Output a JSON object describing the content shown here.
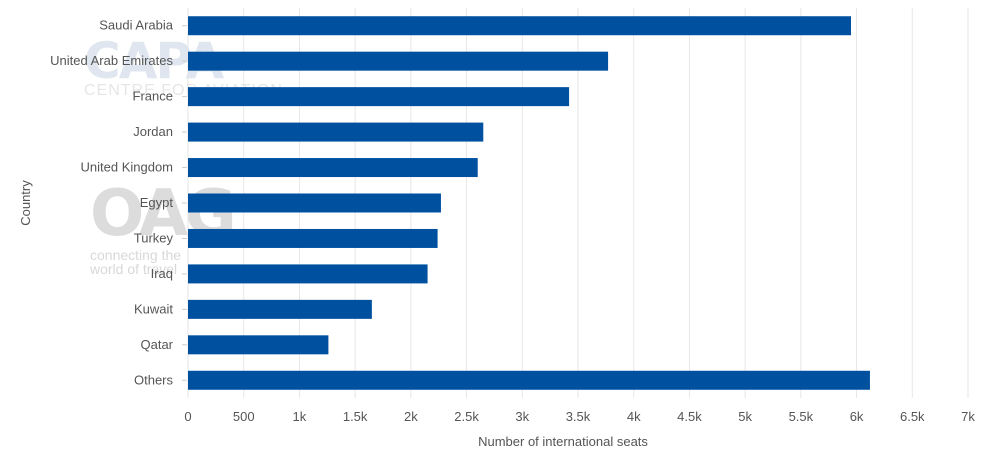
{
  "chart_data": {
    "type": "bar",
    "orientation": "horizontal",
    "title": "",
    "xlabel": "Number of international seats",
    "ylabel": "Country",
    "categories": [
      "Saudi Arabia",
      "United Arab Emirates",
      "France",
      "Jordan",
      "United Kingdom",
      "Egypt",
      "Turkey",
      "Iraq",
      "Kuwait",
      "Qatar",
      "Others"
    ],
    "values": [
      5950,
      3770,
      3420,
      2650,
      2600,
      2270,
      2240,
      2150,
      1650,
      1260,
      6120
    ],
    "xlim": [
      0,
      7000
    ],
    "xticks": [
      0,
      500,
      1000,
      1500,
      2000,
      2500,
      3000,
      3500,
      4000,
      4500,
      5000,
      5500,
      6000,
      6500,
      7000
    ],
    "xtick_labels": [
      "0",
      "500",
      "1k",
      "1.5k",
      "2k",
      "2.5k",
      "3k",
      "3.5k",
      "4k",
      "4.5k",
      "5k",
      "5.5k",
      "6k",
      "6.5k",
      "7k"
    ],
    "grid": true,
    "bar_color": "#0050a0"
  },
  "watermarks": {
    "capa": {
      "title": "CAPA",
      "subtitle": "CENTRE FOR AVIATION"
    },
    "oag": {
      "title": "OAG",
      "line1": "connecting the",
      "line2": "world of travel"
    }
  }
}
